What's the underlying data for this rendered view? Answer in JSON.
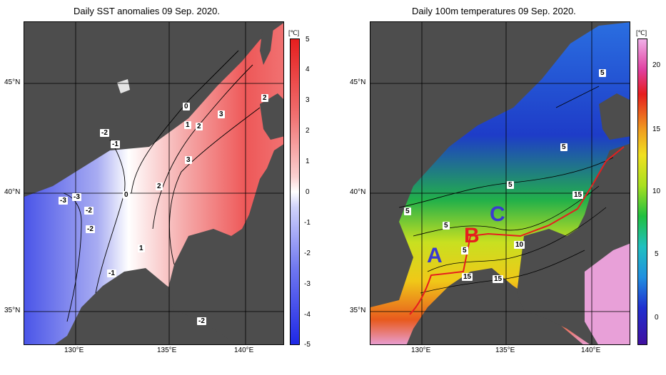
{
  "left_panel": {
    "title": "Daily SST anomalies 09 Sep. 2020.",
    "unit": "[℃]",
    "colorbar_ticks": [
      "5",
      "4",
      "3",
      "2",
      "1",
      "0",
      "-1",
      "-2",
      "-3",
      "-4",
      "-5"
    ],
    "contour_labels": [
      "0",
      "1",
      "2",
      "3",
      "2",
      "3",
      "2",
      "-2",
      "-1",
      "-3",
      "-3",
      "-2",
      "-2",
      "-2",
      "0",
      "1",
      "-1"
    ]
  },
  "right_panel": {
    "title": "Daily 100m temperatures 09 Sep. 2020.",
    "unit": "[℃]",
    "colorbar_ticks": [
      "20",
      "15",
      "10",
      "5",
      "0"
    ],
    "contour_labels": [
      "5",
      "5",
      "5",
      "15",
      "5",
      "5",
      "5",
      "10",
      "15",
      "15"
    ],
    "section_labels": [
      "A",
      "B",
      "C"
    ]
  },
  "axes": {
    "lat_labels": [
      "45°N",
      "40°N",
      "35°N"
    ],
    "lon_labels": [
      "130°E",
      "135°E",
      "140°E"
    ]
  },
  "colors": {
    "land": "#4d4d4d",
    "anomaly_cold": "#2a35e6",
    "anomaly_warm": "#e62a2a",
    "section_line": "#e61e1e",
    "letter_a_c": "#3a3ad0",
    "letter_b": "#e61e1e"
  }
}
